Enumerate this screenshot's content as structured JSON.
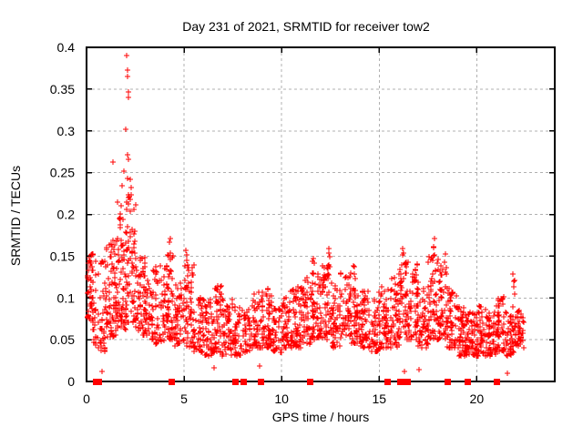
{
  "chart_data": {
    "type": "scatter",
    "title": "Day 231 of 2021, SRMTID for receiver tow2",
    "xlabel": "GPS time / hours",
    "ylabel": "SRMTID / TECUs",
    "xlim": [
      0,
      24
    ],
    "ylim": [
      0,
      0.4
    ],
    "xticks": [
      0,
      5,
      10,
      15,
      20
    ],
    "yticks": [
      0,
      0.05,
      0.1,
      0.15,
      0.2,
      0.25,
      0.3,
      0.35,
      0.4
    ],
    "grid": true,
    "legend": "none",
    "background": "#ffffff",
    "axis_color": "#000000",
    "grid_color": "#b0b0b0",
    "data_representation": "series[0] is a dense scatter (~2300 points) encoded as density segments [x_start,x_end,n_points,y_min,y_max], column peaks [x,y_from,y_to,n] and explicit outlier points [x,y]; series[1] are filled squares at y=0",
    "series": [
      {
        "name": "SRMTID scatter",
        "marker": "plus",
        "color": "#ff0000",
        "segments": [
          [
            0.0,
            0.35,
            45,
            0.07,
            0.155
          ],
          [
            0.35,
            1.0,
            60,
            0.035,
            0.15
          ],
          [
            1.0,
            1.5,
            65,
            0.05,
            0.17
          ],
          [
            1.5,
            2.0,
            70,
            0.06,
            0.2
          ],
          [
            2.0,
            2.5,
            65,
            0.07,
            0.225
          ],
          [
            2.5,
            3.0,
            55,
            0.055,
            0.15
          ],
          [
            3.0,
            3.5,
            50,
            0.05,
            0.135
          ],
          [
            3.5,
            4.0,
            50,
            0.045,
            0.14
          ],
          [
            4.0,
            4.5,
            55,
            0.05,
            0.155
          ],
          [
            4.5,
            5.0,
            50,
            0.04,
            0.12
          ],
          [
            5.0,
            5.5,
            55,
            0.04,
            0.14
          ],
          [
            5.5,
            6.0,
            45,
            0.035,
            0.1
          ],
          [
            6.0,
            6.5,
            45,
            0.03,
            0.1
          ],
          [
            6.5,
            7.0,
            50,
            0.035,
            0.115
          ],
          [
            7.0,
            7.5,
            50,
            0.03,
            0.1
          ],
          [
            7.5,
            8.0,
            40,
            0.03,
            0.09
          ],
          [
            8.0,
            8.5,
            40,
            0.035,
            0.09
          ],
          [
            8.5,
            9.0,
            50,
            0.04,
            0.11
          ],
          [
            9.0,
            9.5,
            50,
            0.04,
            0.105
          ],
          [
            9.5,
            10.0,
            40,
            0.035,
            0.09
          ],
          [
            10.0,
            10.5,
            45,
            0.04,
            0.1
          ],
          [
            10.5,
            11.0,
            50,
            0.04,
            0.11
          ],
          [
            11.0,
            11.5,
            50,
            0.045,
            0.125
          ],
          [
            11.5,
            12.0,
            55,
            0.05,
            0.13
          ],
          [
            12.0,
            12.5,
            55,
            0.05,
            0.14
          ],
          [
            12.5,
            13.0,
            50,
            0.04,
            0.12
          ],
          [
            13.0,
            13.5,
            50,
            0.05,
            0.13
          ],
          [
            13.5,
            14.0,
            50,
            0.045,
            0.12
          ],
          [
            14.0,
            14.5,
            50,
            0.04,
            0.11
          ],
          [
            14.5,
            15.0,
            45,
            0.035,
            0.1
          ],
          [
            15.0,
            15.5,
            50,
            0.04,
            0.115
          ],
          [
            15.5,
            16.0,
            50,
            0.04,
            0.125
          ],
          [
            16.0,
            16.5,
            55,
            0.05,
            0.145
          ],
          [
            16.5,
            17.0,
            50,
            0.05,
            0.135
          ],
          [
            17.0,
            17.5,
            45,
            0.04,
            0.115
          ],
          [
            17.5,
            18.0,
            55,
            0.05,
            0.15
          ],
          [
            18.0,
            18.5,
            50,
            0.05,
            0.14
          ],
          [
            18.5,
            19.0,
            50,
            0.04,
            0.115
          ],
          [
            19.0,
            19.5,
            55,
            0.03,
            0.09
          ],
          [
            19.5,
            20.0,
            55,
            0.03,
            0.085
          ],
          [
            20.0,
            20.5,
            50,
            0.03,
            0.09
          ],
          [
            20.5,
            21.0,
            50,
            0.03,
            0.085
          ],
          [
            21.0,
            21.5,
            50,
            0.035,
            0.105
          ],
          [
            21.5,
            22.0,
            50,
            0.03,
            0.09
          ],
          [
            22.0,
            22.5,
            40,
            0.04,
            0.085
          ]
        ],
        "peaks": [
          [
            1.8,
            0.19,
            0.25,
            3
          ],
          [
            2.1,
            0.22,
            0.27,
            3
          ],
          [
            4.25,
            0.14,
            0.175,
            5
          ],
          [
            5.1,
            0.13,
            0.16,
            4
          ],
          [
            6.9,
            0.1,
            0.12,
            3
          ],
          [
            9.3,
            0.1,
            0.115,
            3
          ],
          [
            10.8,
            0.1,
            0.12,
            3
          ],
          [
            11.6,
            0.12,
            0.155,
            5
          ],
          [
            12.4,
            0.13,
            0.165,
            5
          ],
          [
            13.7,
            0.12,
            0.145,
            4
          ],
          [
            16.2,
            0.14,
            0.165,
            4
          ],
          [
            16.9,
            0.13,
            0.145,
            3
          ],
          [
            17.8,
            0.14,
            0.178,
            5
          ],
          [
            18.4,
            0.13,
            0.155,
            3
          ],
          [
            21.9,
            0.1,
            0.138,
            5
          ]
        ],
        "outliers": [
          [
            2.05,
            0.39
          ],
          [
            2.1,
            0.373
          ],
          [
            2.08,
            0.365
          ],
          [
            2.15,
            0.347
          ],
          [
            2.14,
            0.34
          ],
          [
            2.02,
            0.302
          ],
          [
            2.17,
            0.266
          ],
          [
            1.35,
            0.263
          ],
          [
            1.9,
            0.252
          ],
          [
            2.25,
            0.242
          ],
          [
            2.3,
            0.232
          ],
          [
            1.6,
            0.215
          ],
          [
            0.78,
            0.012
          ],
          [
            6.52,
            0.016
          ],
          [
            8.86,
            0.018
          ],
          [
            16.3,
            0.012
          ],
          [
            17.02,
            0.014
          ],
          [
            21.55,
            0.01
          ]
        ]
      },
      {
        "name": "zero flags",
        "marker": "filled-square",
        "color": "#ff0000",
        "y": 0,
        "x": [
          0.45,
          0.62,
          4.35,
          7.62,
          8.02,
          8.9,
          11.42,
          15.42,
          16.05,
          16.22,
          16.42,
          18.5,
          19.52,
          21.0
        ]
      }
    ]
  }
}
